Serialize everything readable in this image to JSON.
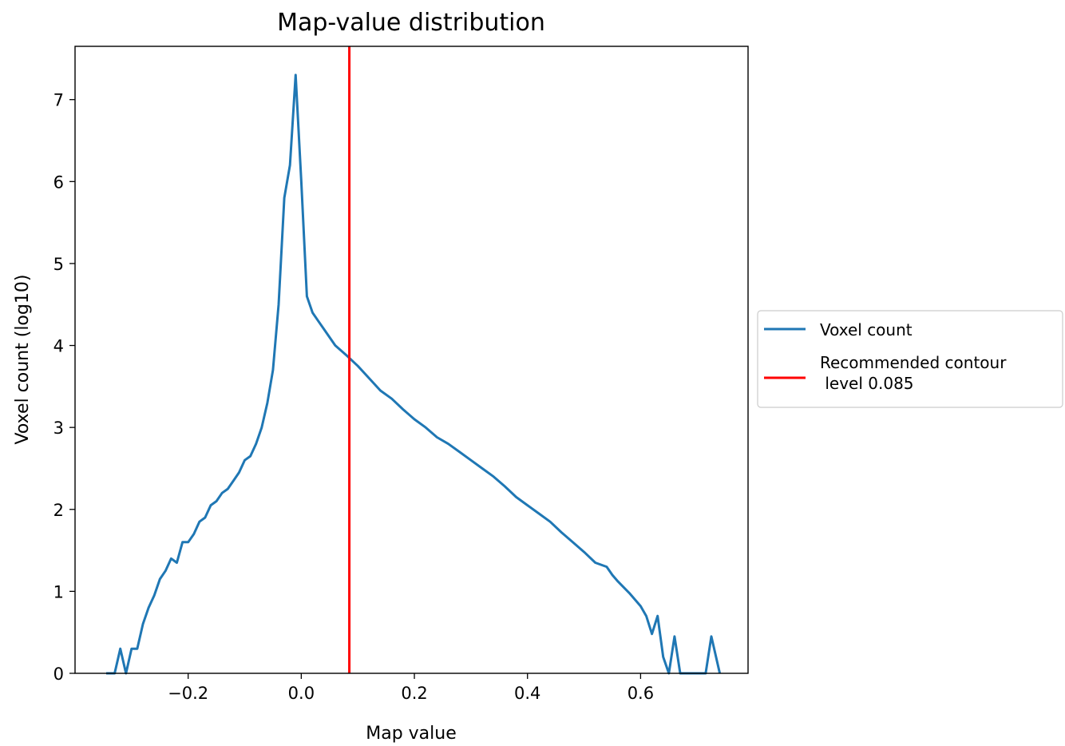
{
  "chart_data": {
    "type": "line",
    "title": "Map-value distribution",
    "xlabel": "Map value",
    "ylabel": "Voxel count (log10)",
    "xlim": [
      -0.4,
      0.79
    ],
    "ylim": [
      0,
      7.65
    ],
    "x_ticks": [
      -0.2,
      0.0,
      0.2,
      0.4,
      0.6
    ],
    "x_tick_labels": [
      "−0.2",
      "0.0",
      "0.2",
      "0.4",
      "0.6"
    ],
    "y_ticks": [
      0,
      1,
      2,
      3,
      4,
      5,
      6,
      7
    ],
    "y_tick_labels": [
      "0",
      "1",
      "2",
      "3",
      "4",
      "5",
      "6",
      "7"
    ],
    "grid": false,
    "legend_placement": "right, outside plot",
    "series": [
      {
        "name": "Voxel count",
        "color": "#1f77b4",
        "x": [
          -0.345,
          -0.33,
          -0.32,
          -0.31,
          -0.3,
          -0.29,
          -0.28,
          -0.27,
          -0.26,
          -0.25,
          -0.24,
          -0.23,
          -0.22,
          -0.21,
          -0.2,
          -0.19,
          -0.18,
          -0.17,
          -0.16,
          -0.15,
          -0.14,
          -0.13,
          -0.12,
          -0.11,
          -0.1,
          -0.09,
          -0.08,
          -0.07,
          -0.06,
          -0.05,
          -0.04,
          -0.03,
          -0.02,
          -0.01,
          0.0,
          0.01,
          0.02,
          0.03,
          0.04,
          0.06,
          0.08,
          0.1,
          0.12,
          0.14,
          0.16,
          0.18,
          0.2,
          0.22,
          0.24,
          0.26,
          0.28,
          0.3,
          0.32,
          0.34,
          0.36,
          0.38,
          0.4,
          0.42,
          0.44,
          0.46,
          0.48,
          0.5,
          0.52,
          0.54,
          0.55,
          0.56,
          0.57,
          0.58,
          0.59,
          0.6,
          0.61,
          0.62,
          0.63,
          0.64,
          0.65,
          0.66,
          0.67,
          0.68,
          0.7,
          0.715,
          0.725,
          0.74
        ],
        "y": [
          0.0,
          0.0,
          0.3,
          0.0,
          0.3,
          0.3,
          0.6,
          0.8,
          0.95,
          1.15,
          1.25,
          1.4,
          1.35,
          1.6,
          1.6,
          1.7,
          1.85,
          1.9,
          2.05,
          2.1,
          2.2,
          2.25,
          2.35,
          2.45,
          2.6,
          2.65,
          2.8,
          3.0,
          3.3,
          3.7,
          4.5,
          5.8,
          6.2,
          7.3,
          6.0,
          4.6,
          4.4,
          4.3,
          4.2,
          4.0,
          3.88,
          3.75,
          3.6,
          3.45,
          3.35,
          3.22,
          3.1,
          3.0,
          2.88,
          2.8,
          2.7,
          2.6,
          2.5,
          2.4,
          2.28,
          2.15,
          2.05,
          1.95,
          1.85,
          1.72,
          1.6,
          1.48,
          1.35,
          1.3,
          1.2,
          1.12,
          1.05,
          0.98,
          0.9,
          0.82,
          0.7,
          0.48,
          0.7,
          0.2,
          0.0,
          0.45,
          0.0,
          0.0,
          0.0,
          0.0,
          0.45,
          0.0
        ]
      },
      {
        "name": "Recommended contour\n level 0.085",
        "color": "#ff0000",
        "type": "vline",
        "x": 0.085
      }
    ],
    "legend": [
      "Voxel count",
      "Recommended contour\n level 0.085"
    ]
  }
}
